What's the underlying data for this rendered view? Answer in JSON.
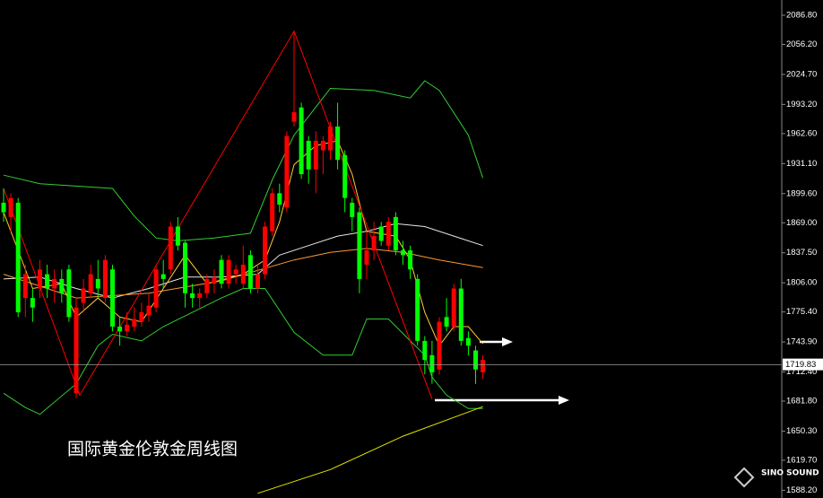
{
  "chart_data": {
    "type": "candlestick",
    "title": "国际黄金伦敦金周线图",
    "logo": "SINO SOUND",
    "up_color": "#ff0000",
    "down_color": "#00ff00",
    "ylim": [
      1580.1,
      2102.8
    ],
    "yticks": [
      {
        "value": 2086.8,
        "label": "2086.80"
      },
      {
        "value": 2056.2,
        "label": "2056.20"
      },
      {
        "value": 2024.7,
        "label": "2024.70"
      },
      {
        "value": 1993.2,
        "label": "1993.20"
      },
      {
        "value": 1962.6,
        "label": "1962.60"
      },
      {
        "value": 1931.1,
        "label": "1931.10"
      },
      {
        "value": 1899.6,
        "label": "1899.60"
      },
      {
        "value": 1869.0,
        "label": "1869.00"
      },
      {
        "value": 1837.5,
        "label": "1837.50"
      },
      {
        "value": 1806.0,
        "label": "1806.00"
      },
      {
        "value": 1775.4,
        "label": "1775.40"
      },
      {
        "value": 1743.9,
        "label": "1743.90"
      },
      {
        "value": 1712.4,
        "label": "1712.40"
      },
      {
        "value": 1681.8,
        "label": "1681.80"
      },
      {
        "value": 1650.3,
        "label": "1650.30"
      },
      {
        "value": 1619.7,
        "label": "1619.70"
      },
      {
        "value": 1588.2,
        "label": "1588.20"
      }
    ],
    "current_price": 1719.83,
    "open": [
      1890,
      1875,
      1890,
      1790,
      1790,
      1800,
      1815,
      1800,
      1810,
      1820,
      1690,
      1785,
      1795,
      1810,
      1790,
      1820,
      1760,
      1755,
      1760,
      1765,
      1772,
      1780,
      1815,
      1820,
      1865,
      1848,
      1795,
      1790,
      1795,
      1805,
      1830,
      1805,
      1815,
      1805,
      1835,
      1800,
      1815,
      1860,
      1900,
      1885,
      1975,
      1990,
      1955,
      1925,
      1945,
      1945,
      1970,
      1940,
      1890,
      1880,
      1825,
      1840,
      1865,
      1845,
      1875,
      1840,
      1840,
      1810,
      1745,
      1730,
      1715,
      1770,
      1760,
      1800,
      1748,
      1735,
      1712
    ],
    "high": [
      1905,
      1900,
      1895,
      1825,
      1800,
      1830,
      1825,
      1820,
      1820,
      1825,
      1790,
      1810,
      1825,
      1830,
      1835,
      1825,
      1770,
      1775,
      1780,
      1785,
      1795,
      1825,
      1830,
      1870,
      1875,
      1850,
      1805,
      1800,
      1815,
      1820,
      1835,
      1835,
      1825,
      1845,
      1840,
      1825,
      1870,
      1905,
      1910,
      1965,
      2070,
      1995,
      1960,
      1965,
      1960,
      1975,
      1995,
      1945,
      1895,
      1885,
      1860,
      1870,
      1870,
      1875,
      1880,
      1850,
      1845,
      1815,
      1750,
      1745,
      1770,
      1790,
      1805,
      1810,
      1755,
      1740,
      1730
    ],
    "low": [
      1870,
      1860,
      1770,
      1770,
      1765,
      1790,
      1790,
      1785,
      1785,
      1765,
      1685,
      1775,
      1790,
      1790,
      1785,
      1755,
      1740,
      1750,
      1755,
      1760,
      1765,
      1775,
      1800,
      1815,
      1840,
      1780,
      1780,
      1780,
      1790,
      1795,
      1800,
      1800,
      1805,
      1800,
      1795,
      1795,
      1810,
      1855,
      1880,
      1880,
      1970,
      1915,
      1910,
      1900,
      1920,
      1935,
      1925,
      1880,
      1860,
      1795,
      1810,
      1830,
      1845,
      1840,
      1835,
      1825,
      1810,
      1740,
      1710,
      1700,
      1710,
      1755,
      1755,
      1740,
      1730,
      1700,
      1705
    ],
    "close": [
      1880,
      1895,
      1775,
      1815,
      1780,
      1820,
      1800,
      1810,
      1795,
      1770,
      1780,
      1800,
      1815,
      1800,
      1830,
      1760,
      1755,
      1762,
      1768,
      1775,
      1782,
      1820,
      1810,
      1865,
      1845,
      1795,
      1790,
      1795,
      1810,
      1812,
      1805,
      1830,
      1820,
      1825,
      1800,
      1815,
      1865,
      1900,
      1888,
      1960,
      1985,
      1920,
      1925,
      1955,
      1955,
      1970,
      1935,
      1895,
      1875,
      1810,
      1840,
      1855,
      1850,
      1870,
      1840,
      1835,
      1820,
      1745,
      1725,
      1712,
      1765,
      1760,
      1800,
      1745,
      1740,
      1715,
      1725
    ],
    "lines": [
      {
        "color": "#33cc33",
        "x": [
          0,
          5,
          15,
          18,
          21,
          24,
          29,
          34,
          37,
          40,
          45,
          51,
          56,
          58,
          60,
          64,
          66
        ],
        "values": [
          1919,
          1910,
          1905,
          1876,
          1853,
          1850,
          1853,
          1858,
          1914,
          1961,
          2010,
          2008,
          2000,
          2018,
          2008,
          1961,
          1916
        ]
      },
      {
        "color": "#33cc33",
        "x": [
          0,
          3,
          5,
          10,
          13,
          15,
          19,
          22,
          26,
          30,
          33,
          36,
          40,
          44,
          48,
          50,
          53,
          56,
          58,
          59,
          61,
          64,
          66
        ],
        "values": [
          1690,
          1675,
          1668,
          1700,
          1740,
          1752,
          1745,
          1760,
          1775,
          1790,
          1800,
          1800,
          1754,
          1730,
          1730,
          1768,
          1768,
          1745,
          1730,
          1707,
          1688,
          1674,
          1674
        ]
      },
      {
        "color": "#e8e8e8",
        "x": [
          0,
          5,
          10,
          15,
          20,
          25,
          30,
          35,
          38,
          42,
          46,
          50,
          54,
          58,
          62,
          66
        ],
        "values": [
          1810,
          1812,
          1800,
          1790,
          1800,
          1812,
          1812,
          1815,
          1835,
          1845,
          1855,
          1860,
          1868,
          1865,
          1855,
          1845
        ]
      },
      {
        "color": "#ff9933",
        "x": [
          0,
          10,
          20,
          30,
          40,
          45,
          50,
          55,
          60,
          66
        ],
        "values": [
          1815,
          1790,
          1795,
          1808,
          1830,
          1838,
          1842,
          1838,
          1830,
          1822
        ]
      },
      {
        "color": "#ffcc33",
        "x": [
          0,
          2,
          4,
          8,
          10,
          13,
          16,
          19,
          22,
          25,
          28,
          33,
          36,
          38,
          40,
          43,
          46,
          48,
          50,
          54,
          56,
          58,
          60,
          62,
          64,
          66
        ],
        "values": [
          1880,
          1840,
          1800,
          1805,
          1770,
          1790,
          1770,
          1765,
          1800,
          1835,
          1805,
          1815,
          1830,
          1870,
          1930,
          1950,
          1955,
          1920,
          1860,
          1855,
          1830,
          1775,
          1740,
          1760,
          1760,
          1742
        ]
      },
      {
        "color": "#e6e600",
        "x": [
          35,
          45,
          55,
          66
        ],
        "values": [
          1585,
          1610,
          1645,
          1676
        ]
      },
      {
        "color": "#ff0000",
        "x": [
          0,
          10.5,
          40,
          59
        ],
        "values": [
          1905,
          1688,
          2070,
          1684
        ]
      }
    ]
  }
}
